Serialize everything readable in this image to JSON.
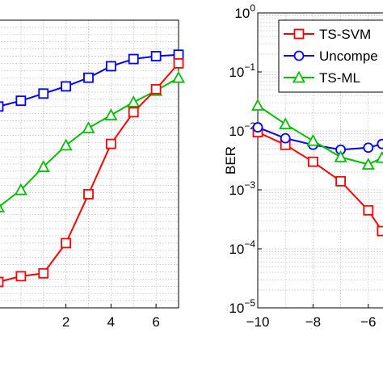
{
  "chart_data": [
    {
      "type": "line",
      "title": "",
      "xlabel": "",
      "ylabel": "",
      "xlim": [
        -1,
        7
      ],
      "ylim": [
        0,
        1
      ],
      "grid": true,
      "x_ticks": [
        2,
        4,
        6
      ],
      "x_tick_labels": [
        "2",
        "4",
        "6"
      ],
      "series": [
        {
          "color": "#0000ff",
          "marker": "square",
          "x": [
            -1,
            0,
            1,
            2,
            3,
            4,
            5,
            6,
            7
          ],
          "values": [
            0.7,
            0.72,
            0.745,
            0.77,
            0.8,
            0.84,
            0.865,
            0.875,
            0.88
          ]
        },
        {
          "color": "#00c000",
          "marker": "triangle",
          "x": [
            -1,
            0,
            1,
            2,
            3,
            4,
            5,
            6,
            7
          ],
          "values": [
            0.35,
            0.41,
            0.49,
            0.565,
            0.625,
            0.67,
            0.715,
            0.755,
            0.8
          ]
        },
        {
          "color": "#ff0000",
          "marker": "square",
          "x": [
            -1,
            0,
            1,
            2,
            3,
            4,
            5,
            6,
            7
          ],
          "values": [
            0.09,
            0.11,
            0.12,
            0.225,
            0.395,
            0.57,
            0.68,
            0.76,
            0.85
          ]
        }
      ]
    },
    {
      "type": "line",
      "title": "",
      "xlabel": "",
      "ylabel": "BER",
      "yscale": "log",
      "xlim": [
        -10,
        -5
      ],
      "ylim": [
        1e-05,
        1
      ],
      "grid": true,
      "legend_position": "top-right",
      "x_ticks": [
        -10,
        -8,
        -6
      ],
      "x_tick_labels": [
        "−10",
        "−8",
        "−6"
      ],
      "y_ticks": [
        1e-05,
        0.0001,
        0.001,
        0.01,
        0.1,
        1
      ],
      "y_tick_labels": [
        {
          "base": "10",
          "exp": "−5"
        },
        {
          "base": "10",
          "exp": "−4"
        },
        {
          "base": "10",
          "exp": "−3"
        },
        {
          "base": "10",
          "exp": "−2"
        },
        {
          "base": "10",
          "exp": "−1"
        },
        {
          "base": "10",
          "exp": "0"
        }
      ],
      "series": [
        {
          "name": "TS-SVM",
          "color": "#ff0000",
          "marker": "square",
          "x": [
            -10,
            -9,
            -8,
            -7,
            -6,
            -5.5
          ],
          "values": [
            0.0095,
            0.0058,
            0.003,
            0.0014,
            0.00045,
            0.0002
          ]
        },
        {
          "name": "Uncompe",
          "color": "#0000ff",
          "marker": "circle",
          "x": [
            -10,
            -9,
            -8,
            -7,
            -6,
            -5.5
          ],
          "values": [
            0.0115,
            0.0075,
            0.0058,
            0.0048,
            0.0052,
            0.006
          ]
        },
        {
          "name": "TS-ML",
          "color": "#00c000",
          "marker": "triangle",
          "x": [
            -10,
            -9,
            -8,
            -7,
            -6,
            -5.5
          ],
          "values": [
            0.027,
            0.013,
            0.0068,
            0.0036,
            0.0027,
            0.0035
          ]
        }
      ]
    }
  ]
}
